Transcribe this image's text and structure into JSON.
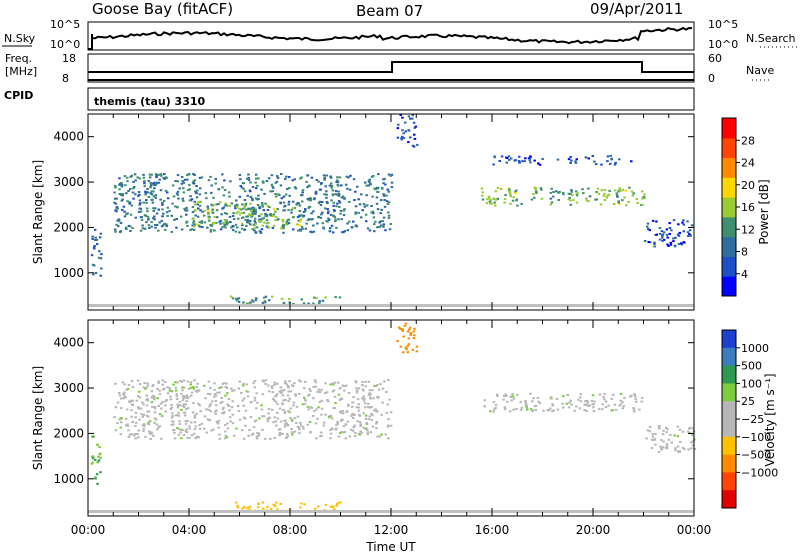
{
  "header": {
    "station": "Goose Bay (fitACF)",
    "beam": "Beam 07",
    "date": "09/Apr/2011"
  },
  "top_panels": {
    "nsky_label": "N.Sky",
    "nsky_ticks": [
      "10^5",
      "10^0"
    ],
    "nsearch_label": "N.Search",
    "nsearch_ticks": [
      "10^5",
      "10^0"
    ],
    "freq_label": "Freq.",
    "freq_unit": "[MHz]",
    "freq_ticks": [
      "18",
      "8"
    ],
    "nave_label": "Nave",
    "nave_ticks": [
      "60",
      "0"
    ],
    "cpid_label": "CPID",
    "cpid_value": "themis (tau) 3310"
  },
  "colors": {
    "power": [
      "#0000ff",
      "#1f4fc8",
      "#2f6d9a",
      "#3f8f6f",
      "#9acd32",
      "#ffd700",
      "#ff8c00",
      "#ff4500",
      "#ff0000"
    ],
    "velocity": [
      "#1f3fd0",
      "#3c7dbf",
      "#2e9950",
      "#7ccd3c",
      "#b7b7b7",
      "#b7b7b7",
      "#ffc100",
      "#ff8c00",
      "#ff4500",
      "#e00000"
    ],
    "ground_band": "#c0c0c0"
  },
  "chart_data": [
    {
      "type": "heatmap",
      "panel": "power",
      "ylabel": "Slant Range [km]",
      "yticks": [
        "1000",
        "2000",
        "3000",
        "4000"
      ],
      "ylim": [
        180,
        4500
      ],
      "xlim": [
        0,
        24
      ],
      "colorbar_label": "Power [dB]",
      "colorbar_ticks": [
        "4",
        "8",
        "12",
        "16",
        "20",
        "24",
        "28"
      ],
      "colorbar_range": [
        0,
        32
      ],
      "echo_regions": [
        {
          "t_start": 0.1,
          "t_end": 0.5,
          "r_start": 900,
          "r_end": 2000,
          "value_db": 8
        },
        {
          "t_start": 1.0,
          "t_end": 12.0,
          "r_start": 1900,
          "r_end": 3200,
          "value_db": 10
        },
        {
          "t_start": 4.0,
          "t_end": 8.5,
          "r_start": 2000,
          "r_end": 2600,
          "value_db": 14
        },
        {
          "t_start": 5.5,
          "t_end": 10.0,
          "r_start": 300,
          "r_end": 500,
          "value_db": 12
        },
        {
          "t_start": 12.2,
          "t_end": 13.0,
          "r_start": 3800,
          "r_end": 4500,
          "value_db": 6
        },
        {
          "t_start": 15.5,
          "t_end": 22.0,
          "r_start": 2500,
          "r_end": 2900,
          "value_db": 14
        },
        {
          "t_start": 16.0,
          "t_end": 21.5,
          "r_start": 3400,
          "r_end": 3600,
          "value_db": 6
        },
        {
          "t_start": 22.0,
          "t_end": 24.0,
          "r_start": 1600,
          "r_end": 2200,
          "value_db": 6
        }
      ]
    },
    {
      "type": "heatmap",
      "panel": "velocity",
      "ylabel": "Slant Range [km]",
      "yticks": [
        "1000",
        "2000",
        "3000",
        "4000"
      ],
      "ylim": [
        180,
        4500
      ],
      "xlim": [
        0,
        24
      ],
      "xticks": [
        "00:00",
        "04:00",
        "08:00",
        "12:00",
        "16:00",
        "20:00",
        "00:00"
      ],
      "xlabel": "Time UT",
      "colorbar_label": "Velocity [m s⁻¹]",
      "colorbar_ticks": [
        "1000",
        "500",
        "100",
        "25",
        "−25",
        "−100",
        "−500",
        "−1000"
      ],
      "echo_regions": [
        {
          "t_start": 0.1,
          "t_end": 0.5,
          "r_start": 900,
          "r_end": 2000,
          "velocity": 100
        },
        {
          "t_start": 1.0,
          "t_end": 12.0,
          "r_start": 1900,
          "r_end": 3200,
          "velocity": 0
        },
        {
          "t_start": 5.5,
          "t_end": 10.0,
          "r_start": 300,
          "r_end": 500,
          "velocity": -150
        },
        {
          "t_start": 12.2,
          "t_end": 13.0,
          "r_start": 3800,
          "r_end": 4500,
          "velocity": -800
        },
        {
          "t_start": 15.5,
          "t_end": 22.0,
          "r_start": 2500,
          "r_end": 2900,
          "velocity": 0
        },
        {
          "t_start": 22.0,
          "t_end": 24.0,
          "r_start": 1600,
          "r_end": 2200,
          "velocity": 0
        }
      ]
    }
  ]
}
